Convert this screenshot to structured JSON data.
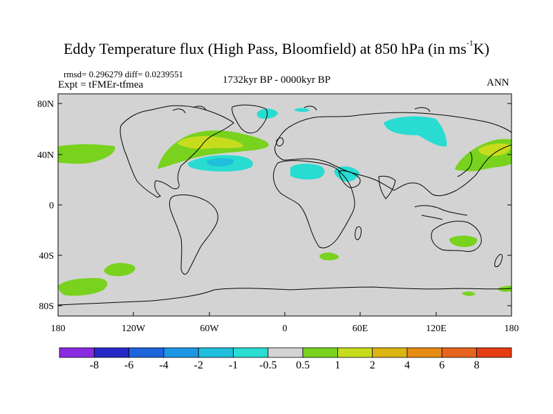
{
  "title": {
    "main": "Eddy Temperature flux (High Pass, Bloomfield) at 850 hPa (in ms",
    "sup": "-1",
    "end": "K)"
  },
  "stats": "rmsd= 0.296279 diff= 0.0239551",
  "experiment": "Expt = tFMEr-tfmea",
  "period": "1732kyr BP - 0000kyr BP",
  "season": "ANN",
  "axes": {
    "lat_ticks": [
      "80N",
      "40N",
      "0",
      "40S",
      "80S"
    ],
    "lon_ticks": [
      "180",
      "120W",
      "60W",
      "0",
      "60E",
      "120E",
      "180"
    ]
  },
  "colorbar": {
    "colors": [
      "#8a2be2",
      "#2828c8",
      "#1e64dc",
      "#1e96e6",
      "#1ebedc",
      "#28dcd2",
      "#d3d3d3",
      "#78d21e",
      "#c8dc1e",
      "#dcb414",
      "#e68c14",
      "#e6641e",
      "#e63c14"
    ],
    "labels": [
      "-8",
      "-6",
      "-4",
      "-2",
      "-1",
      "-0.5",
      "0.5",
      "1",
      "2",
      "4",
      "6",
      "8"
    ]
  },
  "map_colors": {
    "background": "#d3d3d3",
    "green": "#78d21e",
    "yellow": "#c8dc1e",
    "cyan": "#28dcd2",
    "blue": "#1ebedc",
    "coast": "#000000"
  }
}
